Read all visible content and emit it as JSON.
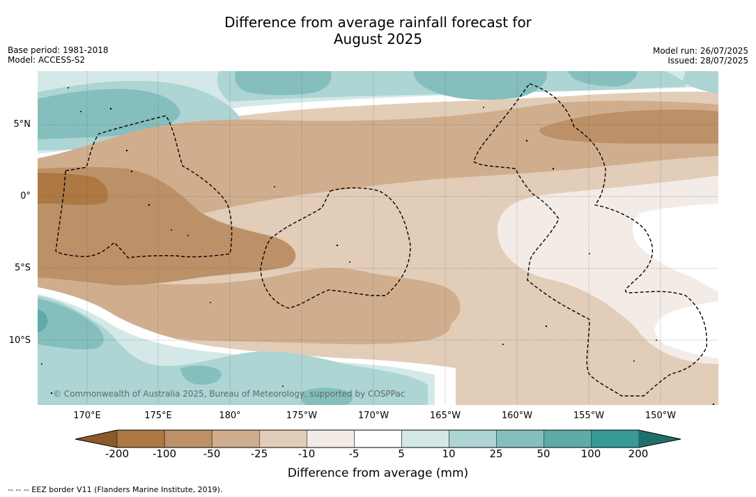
{
  "title_line1": "Difference from average rainfall forecast for",
  "title_line2": "August 2025",
  "meta_left": {
    "base_period": "Base period: 1981-2018",
    "model": "Model: ACCESS-S2"
  },
  "meta_right": {
    "model_run": "Model run: 26/07/2025",
    "issued": "Issued: 28/07/2025"
  },
  "lat_labels": [
    "5°N",
    "0°",
    "5°S",
    "10°S"
  ],
  "lon_labels": [
    "170°E",
    "175°E",
    "180°",
    "175°W",
    "170°W",
    "165°W",
    "160°W",
    "155°W",
    "150°W"
  ],
  "copyright": "© Commonwealth of Australia 2025, Bureau of Meteorology, supported by COSPPac",
  "colorbar": {
    "label": "Difference from average (mm)",
    "ticks": [
      "-200",
      "-100",
      "-50",
      "-25",
      "-10",
      "-5",
      "5",
      "10",
      "25",
      "50",
      "100",
      "200"
    ],
    "colors": {
      "below_min": "#8b5a2b",
      "c1": "#ad7842",
      "c2": "#bd9168",
      "c3": "#d0ae8d",
      "c4": "#e2cdb9",
      "c5": "#f3ece6",
      "c6": "#ffffff",
      "c7": "#d4e9e7",
      "c8": "#acd5d3",
      "c9": "#85bfbd",
      "c10": "#5eaba8",
      "c11": "#379a96",
      "above_max": "#216f6c"
    }
  },
  "footnote": "--  --  -- EEZ border V11 (Flanders Marine Institute, 2019)."
}
